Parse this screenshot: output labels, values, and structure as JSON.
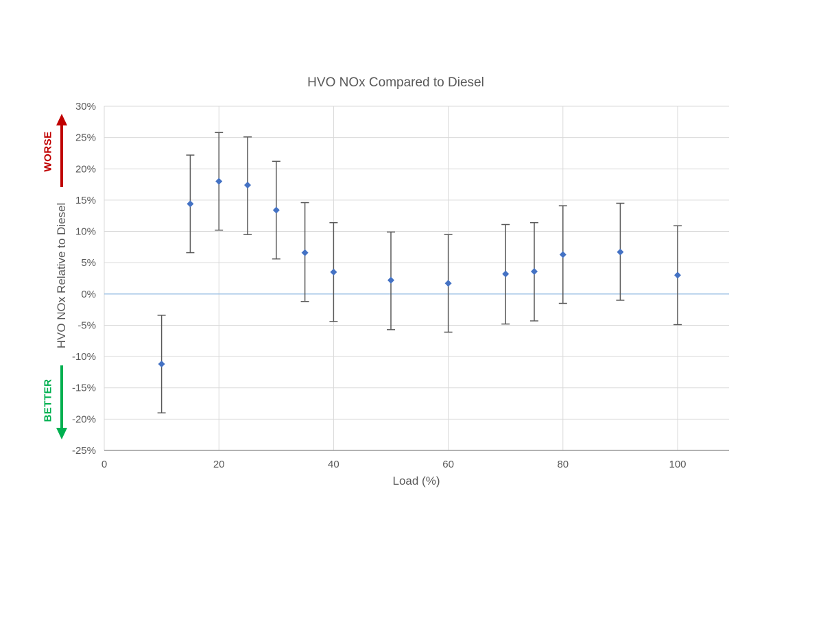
{
  "page": {
    "background": "#FFFFFF"
  },
  "chart_data": {
    "type": "scatter",
    "title": "HVO NOx Compared to Diesel",
    "xlabel": "Load (%)",
    "ylabel": "HVO NOx Relative to Diesel",
    "x_ticks": [
      0,
      20,
      40,
      60,
      80,
      100
    ],
    "y_ticks_percent": [
      30,
      25,
      20,
      15,
      10,
      5,
      0,
      -5,
      -10,
      -15,
      -20,
      -25
    ],
    "xlim": [
      0,
      110
    ],
    "ylim_percent": [
      -25,
      30
    ],
    "grid": true,
    "legend_position": "none",
    "zero_line_percent": 0,
    "series": [
      {
        "name": "HVO NOx relative to Diesel",
        "marker": "diamond",
        "marker_color": "#4472C4",
        "error_bar_color": "#595959",
        "points": [
          {
            "x": 10,
            "y": -11.2,
            "err_low": -19.0,
            "err_high": -3.4
          },
          {
            "x": 15,
            "y": 14.4,
            "err_low": 6.6,
            "err_high": 22.2
          },
          {
            "x": 20,
            "y": 18.0,
            "err_low": 10.2,
            "err_high": 25.8
          },
          {
            "x": 25,
            "y": 17.4,
            "err_low": 9.5,
            "err_high": 25.1
          },
          {
            "x": 30,
            "y": 13.4,
            "err_low": 5.6,
            "err_high": 21.2
          },
          {
            "x": 35,
            "y": 6.6,
            "err_low": -1.2,
            "err_high": 14.6
          },
          {
            "x": 40,
            "y": 3.5,
            "err_low": -4.4,
            "err_high": 11.4
          },
          {
            "x": 50,
            "y": 2.2,
            "err_low": -5.7,
            "err_high": 9.9
          },
          {
            "x": 60,
            "y": 1.7,
            "err_low": -6.1,
            "err_high": 9.5
          },
          {
            "x": 70,
            "y": 3.2,
            "err_low": -4.8,
            "err_high": 11.1
          },
          {
            "x": 75,
            "y": 3.6,
            "err_low": -4.3,
            "err_high": 11.4
          },
          {
            "x": 80,
            "y": 6.3,
            "err_low": -1.5,
            "err_high": 14.1
          },
          {
            "x": 90,
            "y": 6.7,
            "err_low": -1.0,
            "err_high": 14.5
          },
          {
            "x": 100,
            "y": 3.0,
            "err_low": -4.9,
            "err_high": 10.9
          }
        ]
      }
    ],
    "annotations": {
      "worse": {
        "label": "WORSE",
        "color": "#C00000",
        "arrow_direction": "up"
      },
      "better": {
        "label": "BETTER",
        "color": "#00B050",
        "arrow_direction": "down"
      }
    },
    "colors": {
      "gridline": "#D9D9D9",
      "axis_line": "#9A9A9A",
      "y_axis_line": "#D9D9D9",
      "zero_line": "#9CC2E5",
      "text": "#595959"
    }
  }
}
